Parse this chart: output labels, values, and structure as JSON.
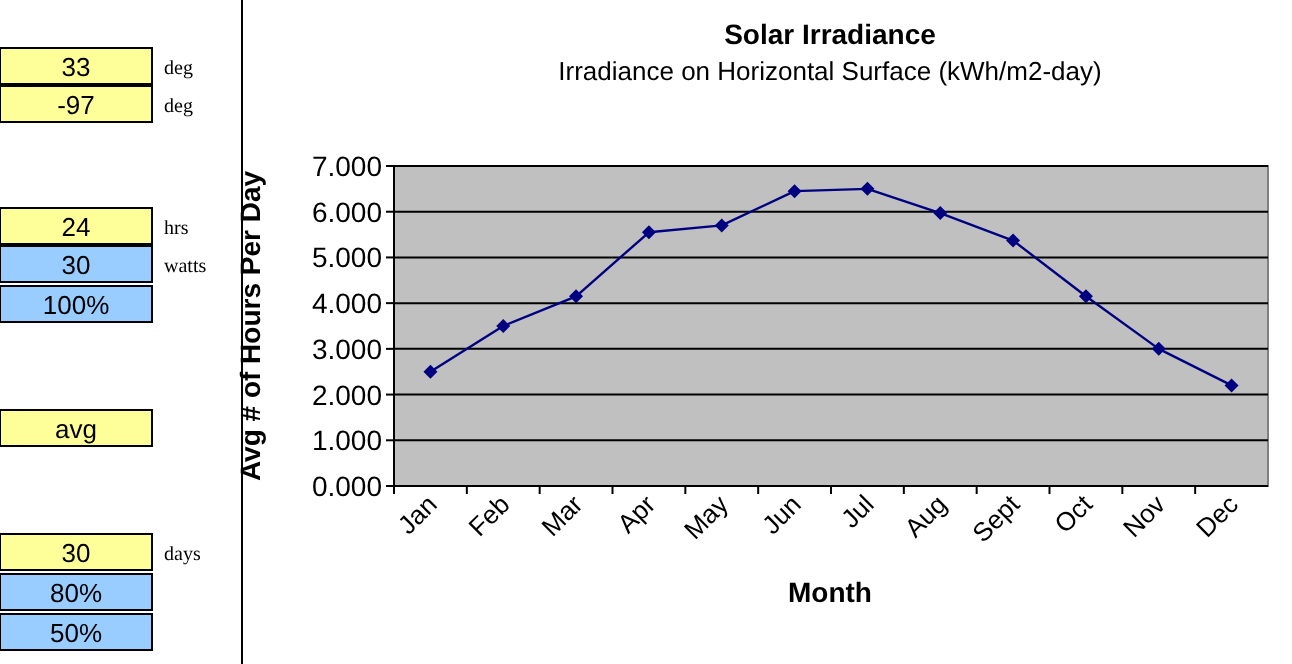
{
  "chart_data": [
    {
      "type": "other",
      "annotations": [
        "33",
        "deg",
        "-97",
        "deg",
        "24",
        "hrs",
        "30",
        "watts",
        "100%",
        "avg",
        "30",
        "days",
        "80%",
        "50%"
      ]
    },
    {
      "type": "line",
      "title": "Solar Irradiance",
      "subtitle": "Irradiance on Horizontal Surface (kWh/m2-day)",
      "xlabel": "Month",
      "ylabel": "Avg # of Hours Per Day",
      "categories": [
        "Jan",
        "Feb",
        "Mar",
        "Apr",
        "May",
        "Jun",
        "Jul",
        "Aug",
        "Sept",
        "Oct",
        "Nov",
        "Dec"
      ],
      "series": [
        {
          "color": "#000080",
          "values": [
            2.5,
            3.5,
            4.15,
            5.55,
            5.7,
            6.45,
            6.5,
            5.97,
            5.37,
            4.15,
            3.0,
            2.2
          ]
        }
      ],
      "ylim": [
        0,
        7
      ],
      "yticks": [
        {
          "value": 0,
          "label": "0.000"
        },
        {
          "value": 1,
          "label": "1.000"
        },
        {
          "value": 2,
          "label": "2.000"
        },
        {
          "value": 3,
          "label": "3.000"
        },
        {
          "value": 4,
          "label": "4.000"
        },
        {
          "value": 5,
          "label": "5.000"
        },
        {
          "value": 6,
          "label": "6.000"
        },
        {
          "value": 7,
          "label": "7.000"
        }
      ],
      "grid": "y",
      "marker": "diamond",
      "line_style": "solid"
    }
  ]
}
